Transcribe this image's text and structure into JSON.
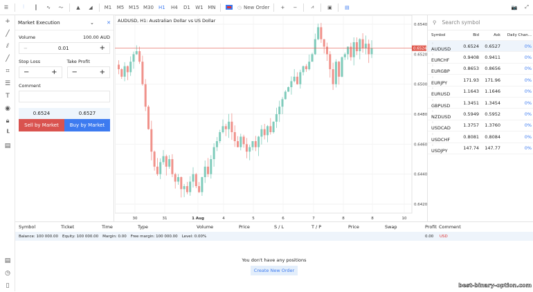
{
  "toolbar": {
    "timeframes": [
      "M1",
      "M5",
      "M15",
      "M30",
      "H1",
      "H4",
      "D1",
      "W1",
      "MN"
    ],
    "active_timeframe": "H1",
    "new_order": "New Order",
    "plus": "+",
    "minus": "−"
  },
  "order_panel": {
    "title": "Market Execution",
    "volume_label": "Volume",
    "volume_value_aud": "100.00 AUD",
    "volume": "0.01",
    "stop_loss": "Stop Loss",
    "take_profit": "Take Profit",
    "comment": "Comment",
    "bid": "0.6524",
    "ask": "0.6527",
    "sell": "Sell by Market",
    "buy": "Buy by Market",
    "minus": "−",
    "plus": "+"
  },
  "chart": {
    "title": "AUDUSD, H1: Australian Dollar vs US Dollar",
    "current_price": "0.6524"
  },
  "chart_data": {
    "type": "candlestick",
    "symbol": "AUDUSD",
    "timeframe": "H1",
    "y_ticks": [
      "0.6540",
      "0.6520",
      "0.6500",
      "0.6480",
      "0.6460",
      "0.6440",
      "0.6420"
    ],
    "ylim": [
      0.6414,
      0.6546
    ],
    "x_ticks": [
      "30",
      "31",
      "1 Aug",
      "4",
      "5",
      "6",
      "7",
      "8",
      "8",
      "10"
    ],
    "closes": [
      0.651,
      0.6505,
      0.6512,
      0.6508,
      0.6515,
      0.652,
      0.6522,
      0.6515,
      0.65,
      0.6485,
      0.647,
      0.6455,
      0.6445,
      0.644,
      0.6448,
      0.6452,
      0.6445,
      0.645,
      0.644,
      0.6435,
      0.6438,
      0.643,
      0.6432,
      0.6428,
      0.6435,
      0.644,
      0.6432,
      0.6428,
      0.6438,
      0.6445,
      0.644,
      0.645,
      0.6458,
      0.6462,
      0.6468,
      0.6472,
      0.647,
      0.6475,
      0.6468,
      0.6462,
      0.6458,
      0.6465,
      0.646,
      0.6455,
      0.6458,
      0.6462,
      0.6458,
      0.6465,
      0.647,
      0.6466,
      0.6472,
      0.6468,
      0.6475,
      0.648,
      0.6485,
      0.649,
      0.6495,
      0.6498,
      0.6502,
      0.6505,
      0.65,
      0.6508,
      0.6512,
      0.651,
      0.6515,
      0.652,
      0.653,
      0.6538,
      0.653,
      0.6525,
      0.652,
      0.651,
      0.65,
      0.6515,
      0.6505,
      0.6518,
      0.652,
      0.6525,
      0.6518,
      0.6528,
      0.6522,
      0.653,
      0.6524,
      0.6527,
      0.652,
      0.6524
    ],
    "colors": {
      "up": "#7fcbbb",
      "down": "#f0918a",
      "price_line": "#e05a4f"
    }
  },
  "watch": {
    "search_placeholder": "Search symbol",
    "headers": [
      "Symbol",
      "Bid",
      "Ask",
      "Daily Chan..."
    ],
    "rows": [
      [
        "AUDUSD",
        "0.6524",
        "0.6527",
        "0%"
      ],
      [
        "EURCHF",
        "0.9408",
        "0.9411",
        "0%"
      ],
      [
        "EURGBP",
        "0.8653",
        "0.8656",
        "0%"
      ],
      [
        "EURJPY",
        "171.93",
        "171.96",
        "0%"
      ],
      [
        "EURUSD",
        "1.1643",
        "1.1646",
        "0%"
      ],
      [
        "GBPUSD",
        "1.3451",
        "1.3454",
        "0%"
      ],
      [
        "NZDUSD",
        "0.5949",
        "0.5952",
        "0%"
      ],
      [
        "USDCAD",
        "1.3757",
        "1.3760",
        "0%"
      ],
      [
        "USDCHF",
        "0.8081",
        "0.8084",
        "0%"
      ],
      [
        "USDJPY",
        "147.74",
        "147.77",
        "0%"
      ]
    ]
  },
  "positions": {
    "headers": [
      "Symbol",
      "Ticket",
      "Time",
      "Type",
      "Volume",
      "Price",
      "S / L",
      "T / P",
      "Price",
      "Swap",
      "Profit",
      "Comment"
    ],
    "balance": "Balance: 100 000.00",
    "equity": "Equity: 100 000.00",
    "margin": "Margin: 0.00",
    "free_margin": "Free margin: 100 000.00",
    "level": "Level: 0.00%",
    "profit": "0.00",
    "currency": "USD",
    "empty": "You don't have any positions",
    "create": "Create New Order"
  },
  "watermark": "best-binary-option.com"
}
